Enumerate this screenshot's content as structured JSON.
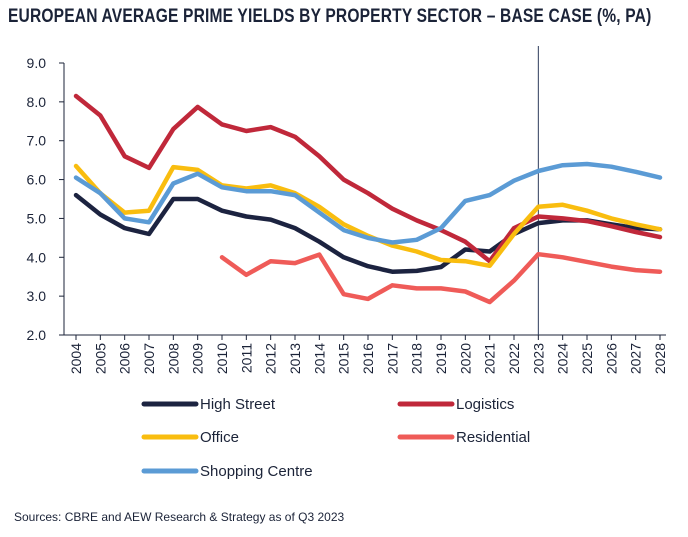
{
  "chart_data": {
    "type": "line",
    "title": "EUROPEAN AVERAGE PRIME YIELDS BY PROPERTY SECTOR – BASE CASE (%, PA)",
    "source": "Sources: CBRE and AEW Research & Strategy as of Q3 2023",
    "x": [
      "2004",
      "2005",
      "2006",
      "2007",
      "2008",
      "2009",
      "2010",
      "2011",
      "2012",
      "2013",
      "2014",
      "2015",
      "2016",
      "2017",
      "2018",
      "2019",
      "2020",
      "2021",
      "2022",
      "2023",
      "2024",
      "2025",
      "2026",
      "2027",
      "2028"
    ],
    "y_ticks": [
      "9.0",
      "8.0",
      "7.0",
      "6.0",
      "5.0",
      "4.0",
      "3.0",
      "2.0"
    ],
    "ylim": [
      2.0,
      9.0
    ],
    "forecast_start": "2023",
    "grid": false,
    "legend_position": "bottom",
    "series": [
      {
        "name": "High Street",
        "color": "#1c2340",
        "values": [
          5.6,
          5.1,
          4.75,
          4.6,
          5.5,
          5.5,
          5.2,
          5.05,
          4.97,
          4.75,
          4.4,
          4.0,
          3.77,
          3.63,
          3.65,
          3.75,
          4.2,
          4.15,
          4.6,
          4.88,
          4.95,
          4.95,
          4.85,
          4.75,
          4.72
        ]
      },
      {
        "name": "Logistics",
        "color": "#c0283a",
        "values": [
          8.15,
          7.65,
          6.6,
          6.3,
          7.3,
          7.87,
          7.42,
          7.25,
          7.35,
          7.1,
          6.6,
          6.0,
          5.65,
          5.25,
          4.95,
          4.7,
          4.4,
          3.9,
          4.75,
          5.05,
          5.0,
          4.93,
          4.8,
          4.65,
          4.52
        ]
      },
      {
        "name": "Office",
        "color": "#f9bd0f",
        "values": [
          6.35,
          5.65,
          5.15,
          5.2,
          6.32,
          6.25,
          5.85,
          5.77,
          5.85,
          5.65,
          5.3,
          4.85,
          4.55,
          4.3,
          4.15,
          3.93,
          3.9,
          3.78,
          4.6,
          5.3,
          5.35,
          5.2,
          5.0,
          4.85,
          4.72
        ]
      },
      {
        "name": "Residential",
        "color": "#ef5b58",
        "values": [
          null,
          null,
          null,
          null,
          null,
          null,
          4.0,
          3.55,
          3.9,
          3.85,
          4.07,
          3.05,
          2.93,
          3.28,
          3.2,
          3.2,
          3.12,
          2.85,
          3.4,
          4.08,
          4.0,
          3.88,
          3.76,
          3.67,
          3.63
        ]
      },
      {
        "name": "Shopping Centre",
        "color": "#5b9bd5",
        "values": [
          6.05,
          5.65,
          5.0,
          4.9,
          5.9,
          6.15,
          5.8,
          5.7,
          5.7,
          5.6,
          5.15,
          4.7,
          4.5,
          4.38,
          4.45,
          4.75,
          5.45,
          5.6,
          5.97,
          6.22,
          6.37,
          6.4,
          6.33,
          6.2,
          6.05
        ]
      }
    ]
  }
}
